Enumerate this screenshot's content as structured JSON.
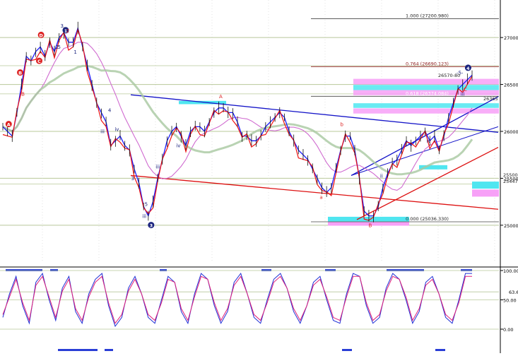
{
  "chart_data": [
    {
      "type": "line",
      "panel": "price",
      "ylim": [
        24600,
        27400
      ],
      "yticks": [
        25000,
        25500,
        26000,
        26500,
        27000
      ],
      "ytick_labels": [
        "25000.",
        "25500.",
        "26000.",
        "26500.",
        "27000."
      ],
      "grid": true,
      "series": [
        {
          "values": [
            26050,
            26000,
            25950,
            26200,
            26500,
            26800,
            26750,
            26850,
            26900,
            26800,
            26950,
            26850,
            27000,
            27050,
            26950,
            26950,
            27100,
            26900,
            26700,
            26500,
            26300,
            26200,
            26100,
            25850,
            25900,
            25950,
            25850,
            25800,
            25600,
            25450,
            25200,
            25100,
            25250,
            25500,
            25700,
            25900,
            26000,
            26050,
            25950,
            25850,
            26000,
            26050,
            26050,
            26000,
            26100,
            26200,
            26250,
            26250,
            26200,
            26200,
            26100,
            25950,
            25950,
            25900,
            25900,
            25950,
            26050,
            26100,
            26150,
            26200,
            26150,
            26000,
            25900,
            25800,
            25750,
            25700,
            25600,
            25500,
            25400,
            25350,
            25400,
            25600,
            25800,
            25950,
            25950,
            25800,
            25500,
            25150,
            25100,
            25100,
            25200,
            25400,
            25550,
            25650,
            25700,
            25800,
            25900,
            25850,
            25900,
            25950,
            26000,
            25900,
            25950,
            25800,
            25950,
            26150,
            26300,
            26450,
            26500,
            26550,
            26600
          ]
        }
      ],
      "fib_levels": [
        {
          "label": "1.000 (27200.980)",
          "value": 27200.98
        },
        {
          "label": "0.764 (26690.123)",
          "value": 26690.12
        },
        {
          "label": "0.618 (26374.084)",
          "value": 26374.08
        },
        {
          "label": "0.000 (25036.330)",
          "value": 25036.33
        }
      ],
      "price_labels": [
        "26570-80",
        "26365",
        "25500",
        "25447"
      ],
      "wave_labels": [
        {
          "text": "A",
          "color": "#dd2222",
          "circled": true
        },
        {
          "text": "B",
          "color": "#dd2222",
          "circled": false
        },
        {
          "text": "B",
          "color": "#dd2222",
          "circled": true
        },
        {
          "text": "C",
          "color": "#dd2222",
          "circled": true
        },
        {
          "text": "D",
          "color": "#dd2222",
          "circled": true
        },
        {
          "text": "2",
          "color": "#1a237e",
          "circled": false
        },
        {
          "text": "3",
          "color": "#1a237e",
          "circled": false
        },
        {
          "text": "5",
          "color": "#1a237e",
          "circled": false
        },
        {
          "text": "1",
          "color": "#1a237e",
          "circled": true
        },
        {
          "text": "1",
          "color": "#1a237e",
          "circled": false
        },
        {
          "text": "2",
          "color": "#dd2222",
          "circled": false
        },
        {
          "text": "iii",
          "color": "#1a237e",
          "circled": false
        },
        {
          "text": "iv",
          "color": "#1a237e",
          "circled": false
        },
        {
          "text": "3",
          "color": "#1a237e",
          "circled": false
        },
        {
          "text": "4",
          "color": "#1a237e",
          "circled": false
        },
        {
          "text": "iii",
          "color": "#1a237e",
          "circled": false
        },
        {
          "text": "5",
          "color": "#1a237e",
          "circled": false
        },
        {
          "text": "3",
          "color": "#1a237e",
          "circled": true
        },
        {
          "text": "iii",
          "color": "#1a237e",
          "circled": false
        },
        {
          "text": "iv",
          "color": "#1a237e",
          "circled": false
        },
        {
          "text": "A",
          "color": "#dd2222",
          "circled": false
        },
        {
          "text": "a",
          "color": "#dd2222",
          "circled": false
        },
        {
          "text": "b",
          "color": "#dd2222",
          "circled": false
        },
        {
          "text": "B",
          "color": "#dd2222",
          "circled": false
        },
        {
          "text": "ii",
          "color": "#1a237e",
          "circled": false
        },
        {
          "text": "iv",
          "color": "#1a237e",
          "circled": false
        },
        {
          "text": "4",
          "color": "#1a237e",
          "circled": true
        },
        {
          "text": "C",
          "color": "#dd2222",
          "circled": false
        },
        {
          "text": "v",
          "color": "#1a237e",
          "circled": false
        },
        {
          "text": "iii",
          "color": "#1a237e",
          "circled": false
        },
        {
          "text": "-5-",
          "color": "#1a237e",
          "circled": false
        }
      ]
    },
    {
      "type": "line",
      "panel": "oscillator",
      "ylim": [
        0,
        100
      ],
      "yticks": [
        0,
        50,
        100
      ],
      "ytick_labels": [
        "0.00",
        "50.00",
        "100.00"
      ],
      "reference_lines": [
        63.6
      ],
      "reference_labels": [
        "63.6"
      ],
      "series": [
        {
          "values": [
            20,
            60,
            90,
            40,
            10,
            80,
            95,
            50,
            15,
            70,
            90,
            30,
            10,
            60,
            85,
            95,
            40,
            5,
            20,
            70,
            90,
            60,
            20,
            10,
            50,
            90,
            80,
            30,
            10,
            60,
            95,
            85,
            40,
            10,
            30,
            80,
            95,
            60,
            20,
            10,
            50,
            85,
            95,
            70,
            30,
            10,
            40,
            80,
            90,
            50,
            15,
            10,
            60,
            95,
            90,
            40,
            10,
            20,
            70,
            95,
            85,
            50,
            10,
            30,
            80,
            90,
            60,
            20,
            10,
            50,
            95,
            95
          ]
        },
        {
          "values": [
            25,
            55,
            85,
            45,
            15,
            75,
            90,
            55,
            20,
            65,
            85,
            35,
            15,
            55,
            80,
            90,
            45,
            10,
            25,
            65,
            85,
            60,
            25,
            15,
            45,
            85,
            80,
            35,
            15,
            55,
            90,
            85,
            45,
            15,
            35,
            75,
            90,
            60,
            25,
            15,
            45,
            80,
            90,
            70,
            35,
            15,
            40,
            75,
            85,
            55,
            20,
            15,
            55,
            90,
            90,
            45,
            15,
            25,
            65,
            90,
            85,
            55,
            15,
            35,
            75,
            85,
            60,
            25,
            15,
            45,
            90,
            90
          ]
        }
      ]
    }
  ],
  "colors": {
    "price_blue": "#1a1aff",
    "price_red": "#ee1111",
    "wave_navy": "#1a237e",
    "wave_red": "#dd2222",
    "ma_pink": "#d06bd0",
    "ma_green": "#a8c8a0",
    "channel_blue": "#1414c8",
    "channel_red": "#dd1111",
    "zone_magenta": "#f7a0f7",
    "zone_cyan": "#4fe6f0",
    "grid_olive": "#b8c89a",
    "grid_gray": "#d0d0d0",
    "strip_blue": "#2a3ed6"
  }
}
